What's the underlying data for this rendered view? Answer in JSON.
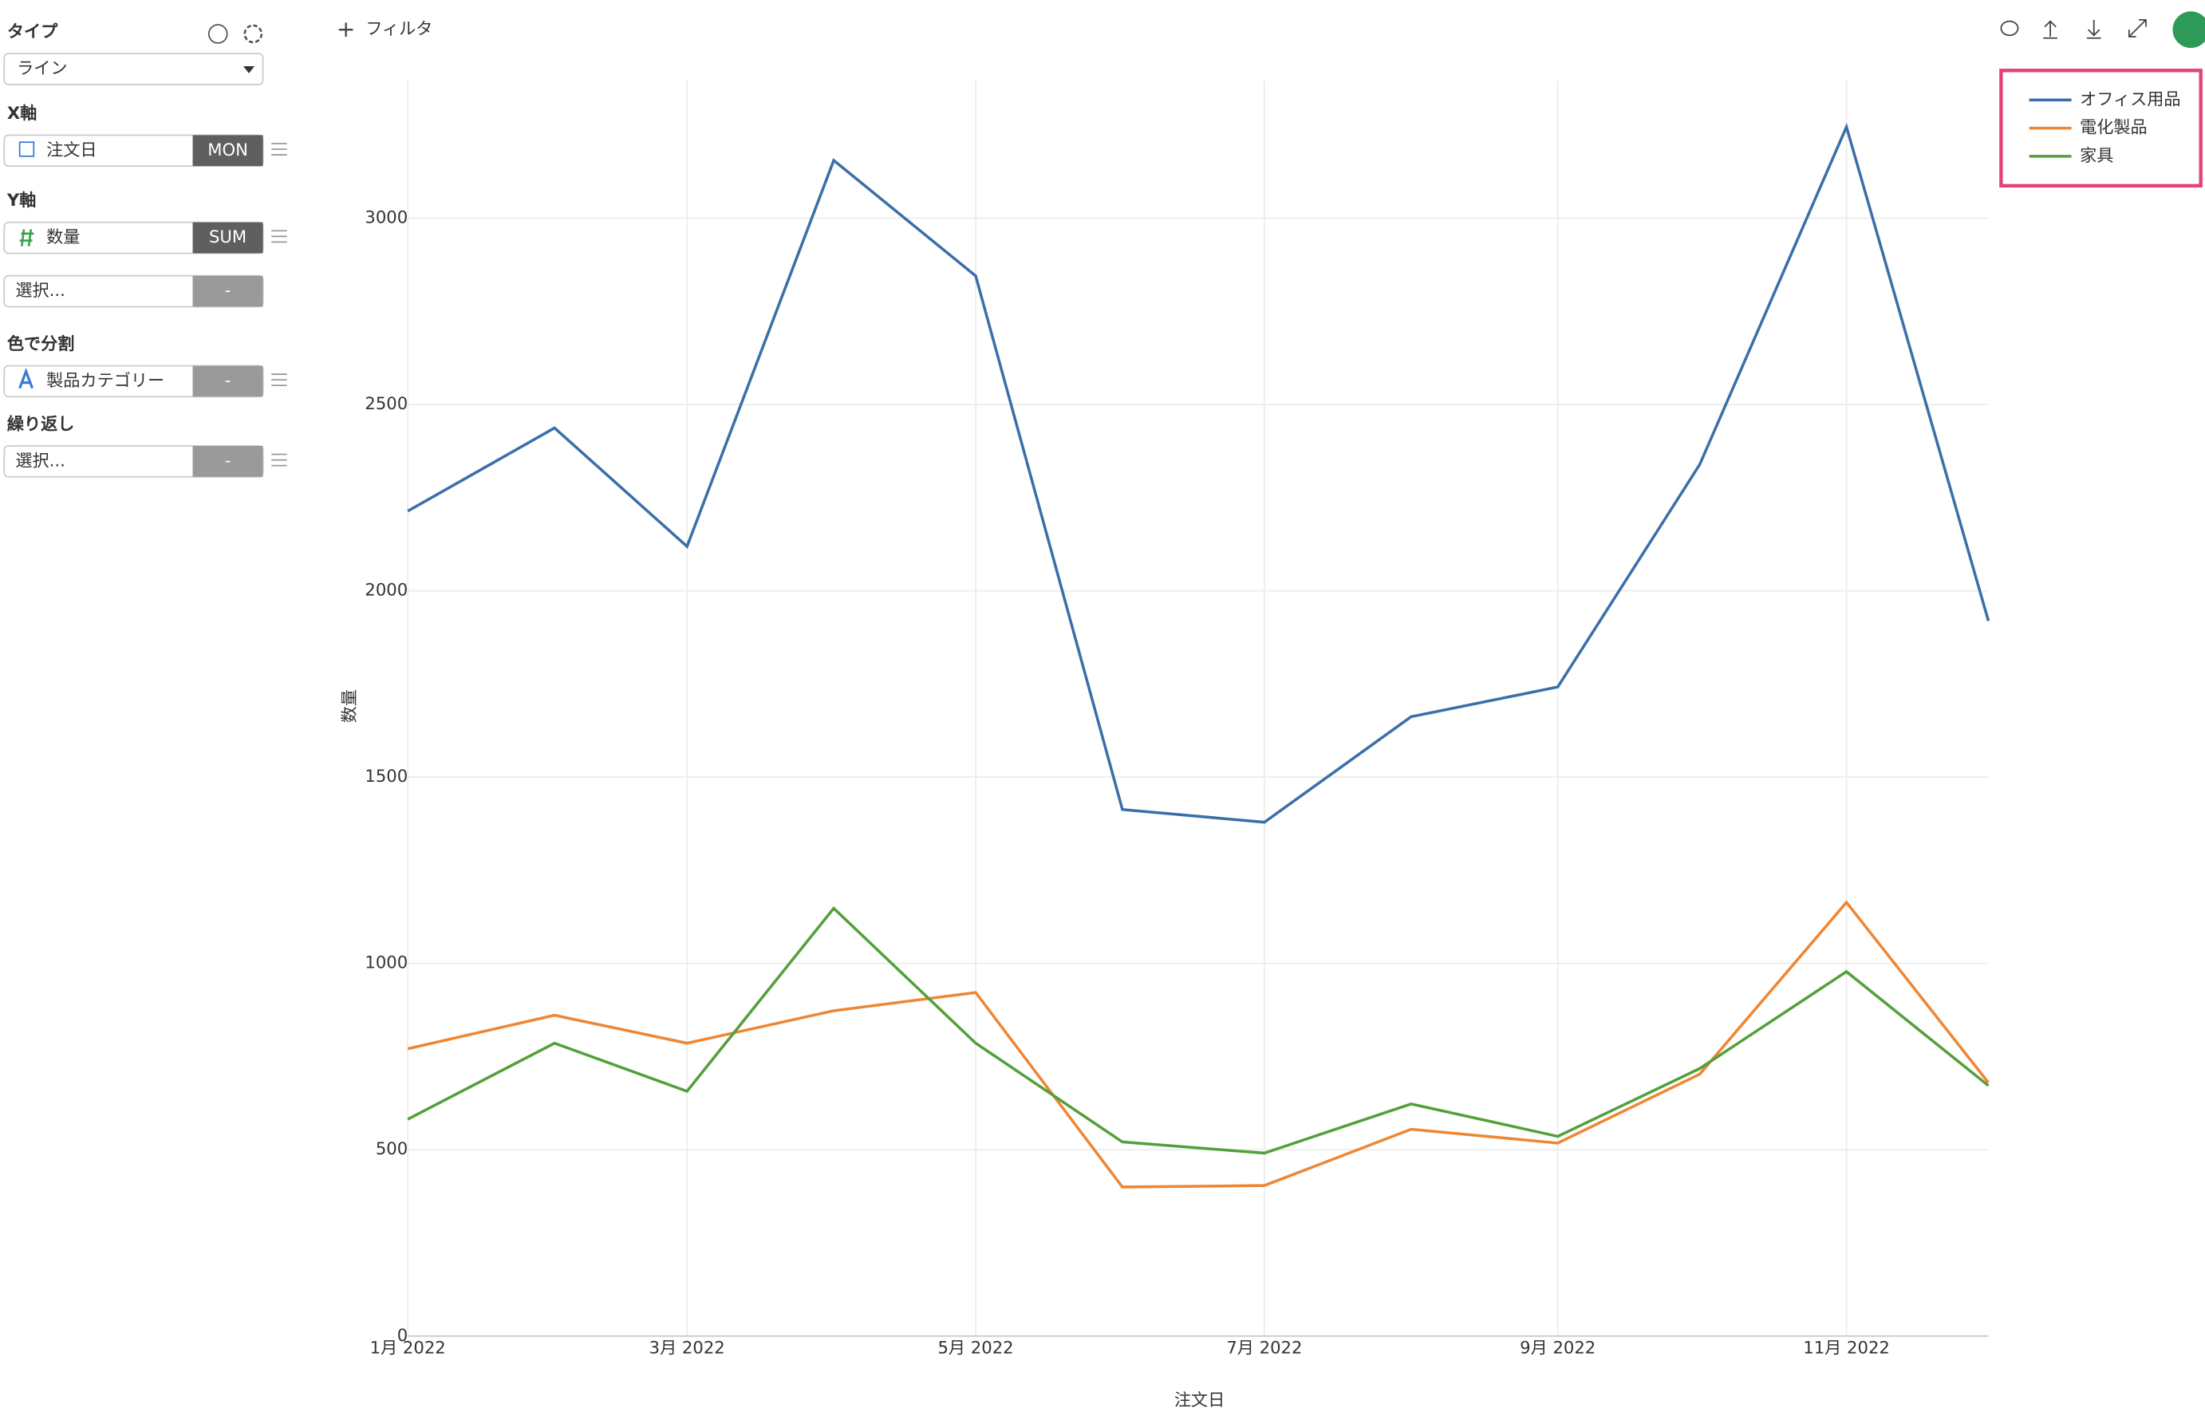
{
  "ui": {
    "filter": "フィルタ",
    "type_label": "タイプ",
    "type_value": "ライン",
    "x_label": "X軸",
    "x_field": "注文日",
    "x_agg": "MON",
    "y_label": "Y軸",
    "y_field": "数量",
    "y_agg": "SUM",
    "y_extra_field": "選択...",
    "y_extra_agg": "-",
    "color_label": "色で分割",
    "color_field": "製品カテゴリー",
    "color_agg": "-",
    "repeat_label": "繰り返し",
    "repeat_field": "選択...",
    "repeat_agg": "-"
  },
  "chart_data": {
    "type": "line",
    "x_label": "注文日",
    "y_label": "数量",
    "x": [
      "2022-01",
      "2022-02",
      "2022-03",
      "2022-04",
      "2022-05",
      "2022-06",
      "2022-07",
      "2022-08",
      "2022-09",
      "2022-10",
      "2022-11",
      "2022-12"
    ],
    "xlim": [
      "2022-01",
      "2022-12"
    ],
    "xticks": [
      {
        "value": "2022-01",
        "label": "1月 2022"
      },
      {
        "value": "2022-03",
        "label": "3月 2022"
      },
      {
        "value": "2022-05",
        "label": "5月 2022"
      },
      {
        "value": "2022-07",
        "label": "7月 2022"
      },
      {
        "value": "2022-09",
        "label": "9月 2022"
      },
      {
        "value": "2022-11",
        "label": "11月 2022"
      }
    ],
    "ylim": [
      0,
      3370
    ],
    "yticks": [
      0,
      500,
      1000,
      1500,
      2000,
      2500,
      3000
    ],
    "grid": true,
    "legend": "top-right",
    "series": [
      {
        "name": "オフィス用品",
        "color": "#3a6fa8",
        "values": [
          2214,
          2437,
          2119,
          3155,
          2845,
          1413,
          1379,
          1662,
          1742,
          2339,
          3245,
          1919
        ]
      },
      {
        "name": "電化製品",
        "color": "#ef8633",
        "values": [
          771,
          861,
          786,
          873,
          922,
          400,
          404,
          555,
          518,
          703,
          1164,
          680
        ]
      },
      {
        "name": "家具",
        "color": "#52a03a",
        "values": [
          582,
          786,
          657,
          1148,
          786,
          521,
          491,
          623,
          536,
          718,
          978,
          672
        ]
      }
    ]
  }
}
